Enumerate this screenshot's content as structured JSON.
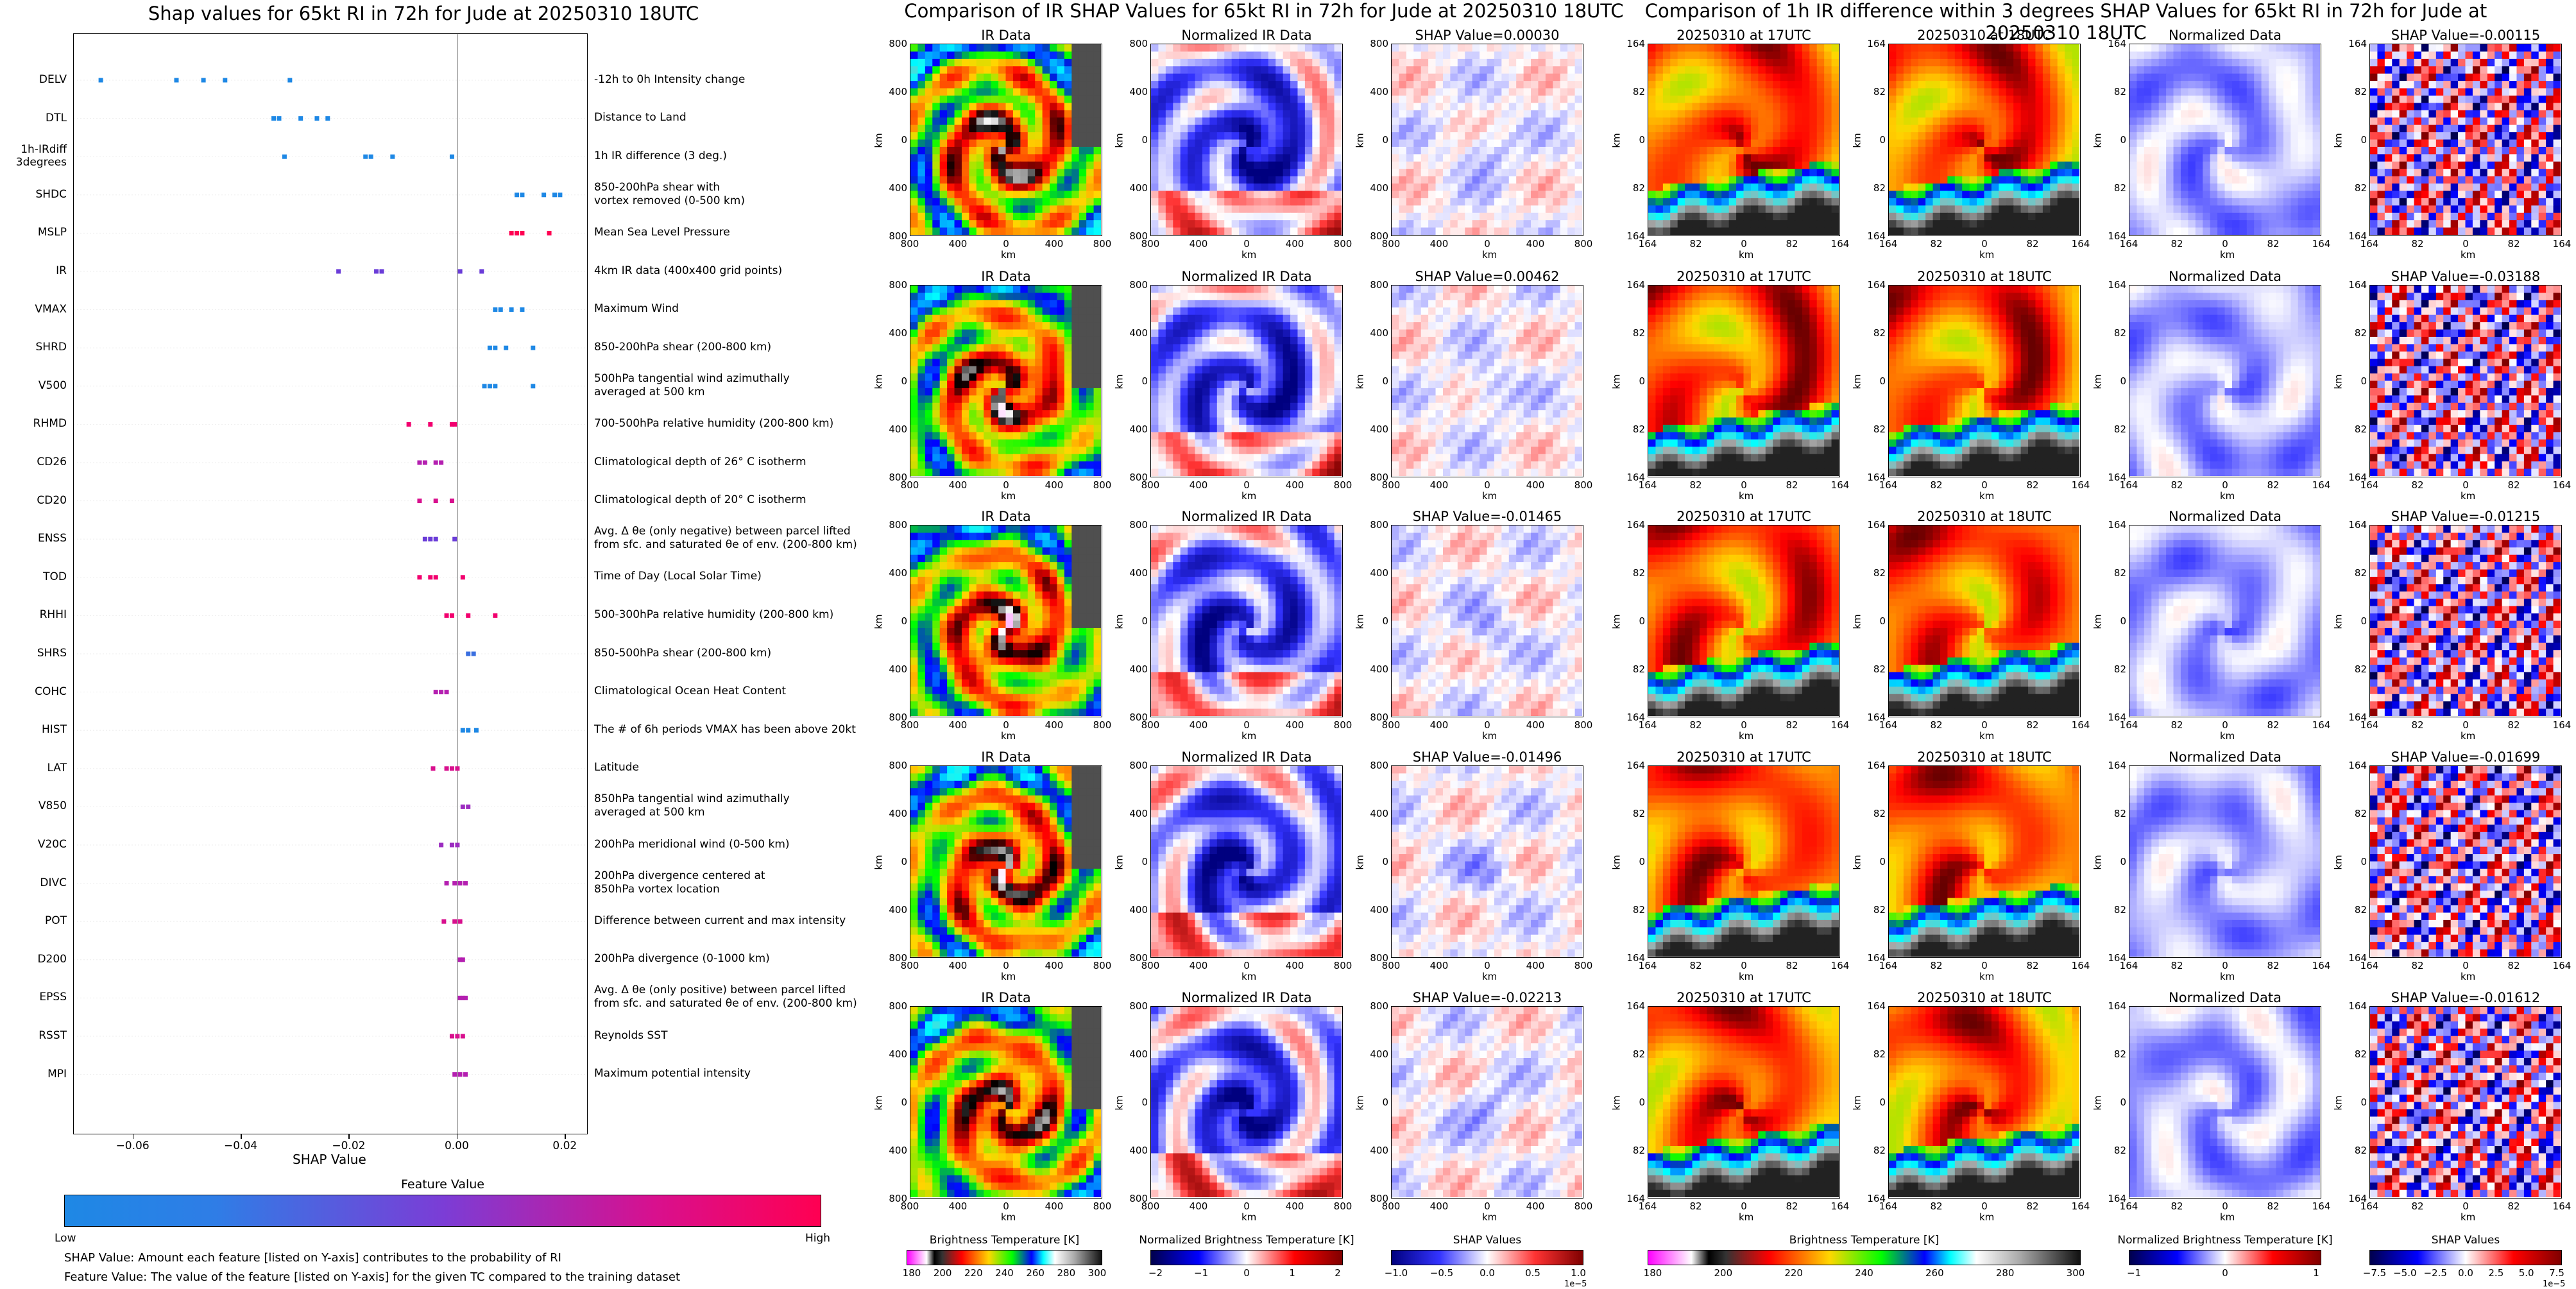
{
  "titles": {
    "left": "Shap values for 65kt RI in 72h for Jude at 20250310 18UTC",
    "middle": "Comparison of IR SHAP Values for 65kt RI in 72h for Jude at 20250310 18UTC",
    "right": "Comparison of 1h IR difference within 3 degrees SHAP Values for 65kt RI in 72h for Jude at 20250310 18UTC"
  },
  "chart_data": [
    {
      "type": "scatter",
      "title": "Shap values for 65kt RI in 72h for Jude at 20250310 18UTC",
      "xlabel": "SHAP Value",
      "xlim": [
        -0.071,
        0.024
      ],
      "xticks": [
        "−0.06",
        "−0.04",
        "−0.02",
        "0.00",
        "0.02"
      ],
      "features": [
        {
          "code": "DELV",
          "desc": "-12h to 0h Intensity change",
          "color": "#1e88e5",
          "x": [
            -0.066,
            -0.052,
            -0.047,
            -0.043,
            -0.031
          ]
        },
        {
          "code": "DTL",
          "desc": "Distance to Land",
          "color": "#1e88e5",
          "x": [
            -0.034,
            -0.033,
            -0.029,
            -0.026,
            -0.024
          ]
        },
        {
          "code": "1h-IRdiff\n3degrees",
          "desc": "1h IR difference (3 deg.)",
          "color": "#1e88e5",
          "x": [
            -0.032,
            -0.017,
            -0.016,
            -0.012,
            -0.001
          ]
        },
        {
          "code": "SHDC",
          "desc": "850-200hPa shear with\nvortex removed (0-500 km)",
          "color": "#1e88e5",
          "x": [
            0.011,
            0.012,
            0.016,
            0.018,
            0.019
          ]
        },
        {
          "code": "MSLP",
          "desc": "Mean Sea Level Pressure",
          "color": "#ff0052",
          "x": [
            0.01,
            0.011,
            0.012,
            0.017
          ]
        },
        {
          "code": "IR",
          "desc": "4km IR data (400x400 grid points)",
          "color": "#6a3cd8",
          "x": [
            -0.022,
            -0.015,
            -0.014,
            0.0005,
            0.0045
          ]
        },
        {
          "code": "VMAX",
          "desc": "Maximum Wind",
          "color": "#1e88e5",
          "x": [
            0.007,
            0.008,
            0.01,
            0.012
          ]
        },
        {
          "code": "SHRD",
          "desc": "850-200hPa shear (200-800 km)",
          "color": "#1e88e5",
          "x": [
            0.006,
            0.007,
            0.009,
            0.014
          ]
        },
        {
          "code": "V500",
          "desc": "500hPa tangential wind azimuthally\naveraged at 500 km",
          "color": "#1e88e5",
          "x": [
            0.005,
            0.006,
            0.007,
            0.014
          ]
        },
        {
          "code": "RHMD",
          "desc": "700-500hPa relative humidity (200-800 km)",
          "color": "#f2006e",
          "x": [
            -0.009,
            -0.005,
            -0.001,
            -0.0005
          ]
        },
        {
          "code": "CD26",
          "desc": "Climatological depth of 26° C isotherm",
          "color": "#b41fb0",
          "x": [
            -0.007,
            -0.006,
            -0.004,
            -0.003
          ]
        },
        {
          "code": "CD20",
          "desc": "Climatological depth of 20° C isotherm",
          "color": "#d8108e",
          "x": [
            -0.007,
            -0.004,
            -0.001
          ]
        },
        {
          "code": "ENSS",
          "desc": "Avg. Δ θe (only negative) between parcel lifted\nfrom sfc. and saturated θe of env. (200-800 km)",
          "color": "#6a3cd8",
          "x": [
            -0.006,
            -0.005,
            -0.004,
            -0.0005
          ]
        },
        {
          "code": "TOD",
          "desc": "Time of Day (Local Solar Time)",
          "color": "#f2006e",
          "x": [
            -0.007,
            -0.005,
            -0.004,
            0.001
          ]
        },
        {
          "code": "RHHI",
          "desc": "500-300hPa relative humidity (200-800 km)",
          "color": "#f2006e",
          "x": [
            -0.002,
            -0.001,
            0.002,
            0.007
          ]
        },
        {
          "code": "SHRS",
          "desc": "850-500hPa shear (200-800 km)",
          "color": "#3a6fe0",
          "x": [
            0.002,
            0.003
          ]
        },
        {
          "code": "COHC",
          "desc": "Climatological Ocean Heat Content",
          "color": "#b41fb0",
          "x": [
            -0.004,
            -0.003,
            -0.002
          ]
        },
        {
          "code": "HIST",
          "desc": "The # of 6h periods VMAX has been above 20kt",
          "color": "#1e88e5",
          "x": [
            0.001,
            0.002,
            0.0035
          ]
        },
        {
          "code": "LAT",
          "desc": "Latitude",
          "color": "#d8108e",
          "x": [
            -0.0045,
            -0.002,
            -0.001,
            0.0
          ]
        },
        {
          "code": "V850",
          "desc": "850hPa tangential wind azimuthally\naveraged at 500 km",
          "color": "#9c2cc0",
          "x": [
            0.001,
            0.002
          ]
        },
        {
          "code": "V20C",
          "desc": "200hPa meridional wind (0-500 km)",
          "color": "#9c2cc0",
          "x": [
            -0.003,
            -0.001,
            0.0
          ]
        },
        {
          "code": "DIVC",
          "desc": "200hPa divergence centered at\n850hPa vortex location",
          "color": "#b41fb0",
          "x": [
            -0.002,
            -0.0005,
            0.0005,
            0.0015
          ]
        },
        {
          "code": "POT",
          "desc": "Difference between current and max intensity",
          "color": "#d8108e",
          "x": [
            -0.0025,
            -0.0005,
            0.0005
          ]
        },
        {
          "code": "D200",
          "desc": "200hPa divergence (0-1000 km)",
          "color": "#b41fb0",
          "x": [
            0.0005,
            0.001
          ]
        },
        {
          "code": "EPSS",
          "desc": "Avg. Δ θe (only positive) between parcel lifted\nfrom sfc. and saturated θe of env. (200-800 km)",
          "color": "#b41fb0",
          "x": [
            0.0005,
            0.001,
            0.0015
          ]
        },
        {
          "code": "RSST",
          "desc": "Reynolds SST",
          "color": "#d8108e",
          "x": [
            -0.001,
            0.0,
            0.001
          ]
        },
        {
          "code": "MPI",
          "desc": "Maximum potential intensity",
          "color": "#b41fb0",
          "x": [
            -0.0005,
            0.0005,
            0.0015
          ]
        }
      ],
      "colorbar": {
        "title": "Feature Value",
        "low": "Low",
        "high": "High",
        "colors": [
          "#1e88e5",
          "#7b3dd6",
          "#ff0052"
        ]
      }
    },
    {
      "type": "heatmap",
      "title": "Comparison of IR SHAP Values for 65kt RI in 72h for Jude at 20250310 18UTC",
      "panel_titles": [
        "IR Data",
        "Normalized IR Data"
      ],
      "shap_titles": [
        "SHAP Value=0.00030",
        "SHAP Value=0.00462",
        "SHAP Value=-0.01465",
        "SHAP Value=-0.01496",
        "SHAP Value=-0.02213"
      ],
      "axis_label": "km",
      "x_ticks": [
        "800",
        "400",
        "0",
        "400",
        "800"
      ],
      "y_ticks": [
        "800",
        "400",
        "0",
        "400",
        "800"
      ],
      "colorbars": [
        {
          "title": "Brightness Temperature [K]",
          "ticks": [
            "180",
            "200",
            "220",
            "240",
            "260",
            "280",
            "300"
          ]
        },
        {
          "title": "Normalized Brightness Temperature [K]",
          "ticks": [
            "−2",
            "−1",
            "0",
            "1",
            "2"
          ]
        },
        {
          "title": "SHAP Values",
          "ticks": [
            "−1.0",
            "−0.5",
            "0.0",
            "0.5",
            "1.0"
          ],
          "exponent": "1e−5"
        }
      ]
    },
    {
      "type": "heatmap",
      "title": "Comparison of 1h IR difference within 3 degrees SHAP Values for 65kt RI in 72h for Jude at 20250310 18UTC",
      "panel_titles": [
        "20250310 at 17UTC",
        "20250310 at 18UTC",
        "Normalized Data"
      ],
      "shap_titles": [
        "SHAP Value=-0.00115",
        "SHAP Value=-0.03188",
        "SHAP Value=-0.01215",
        "SHAP Value=-0.01699",
        "SHAP Value=-0.01612"
      ],
      "axis_label": "km",
      "x_ticks": [
        "164",
        "82",
        "0",
        "82",
        "164"
      ],
      "y_ticks": [
        "164",
        "82",
        "0",
        "82",
        "164"
      ],
      "colorbars": [
        {
          "title": "Brightness Temperature [K]",
          "ticks": [
            "180",
            "200",
            "220",
            "240",
            "260",
            "280",
            "300"
          ]
        },
        {
          "title": "Normalized Brightness Temperature [K]",
          "ticks": [
            "−1",
            "0",
            "1"
          ]
        },
        {
          "title": "SHAP Values",
          "ticks": [
            "−7.5",
            "−5.0",
            "−2.5",
            "0.0",
            "2.5",
            "5.0",
            "7.5"
          ],
          "exponent": "1e−5"
        }
      ]
    }
  ],
  "notes": [
    "SHAP Value: Amount each feature [listed on Y-axis] contributes to the probability of RI",
    "Feature Value: The value of the feature [listed on Y-axis] for the given TC compared to the training dataset"
  ]
}
